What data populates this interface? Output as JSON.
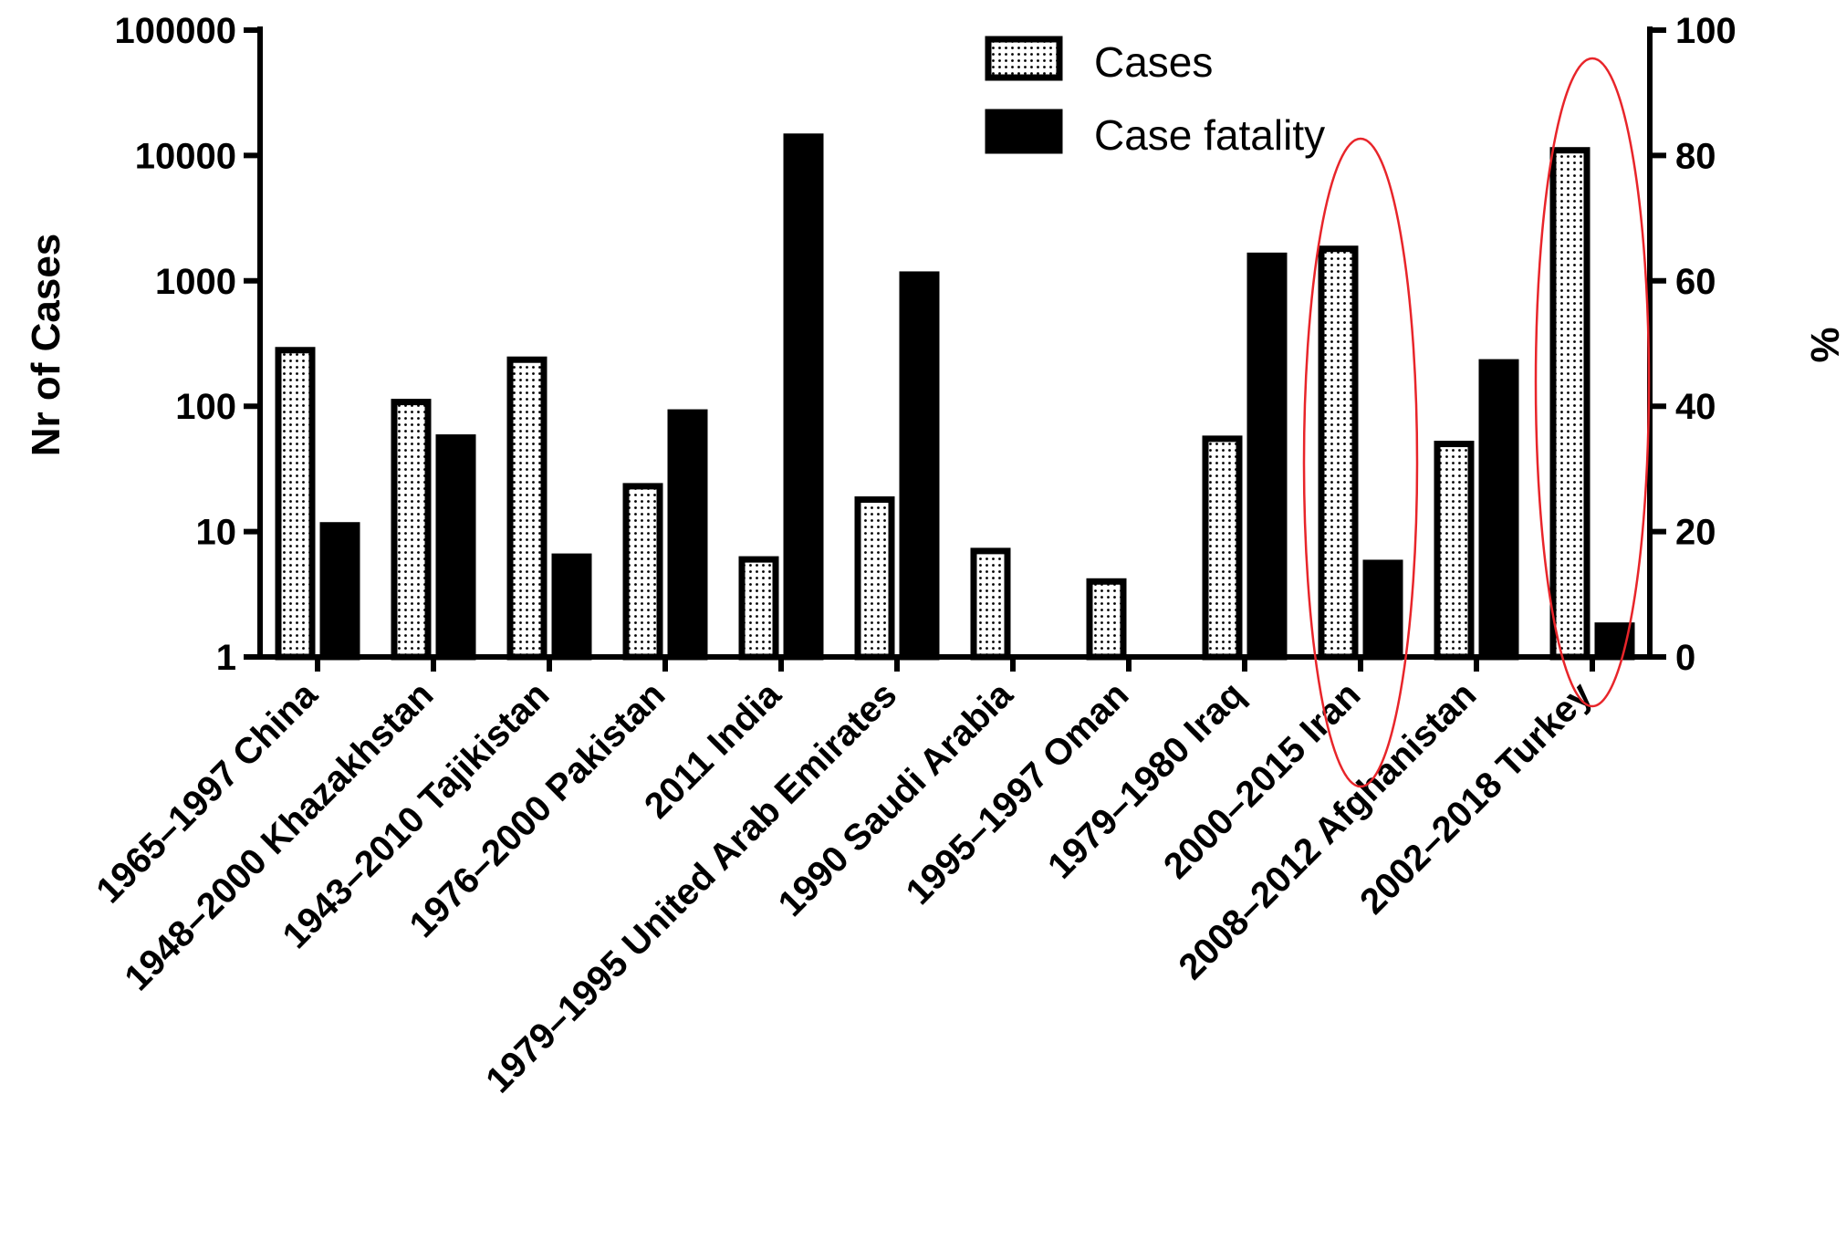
{
  "chart_data": {
    "type": "bar",
    "title": "",
    "categories": [
      "1965–1997 China",
      "1948–2000 Khazakhstan",
      "1943–2010 Tajikistan",
      "1976–2000 Pakistan",
      "2011 India",
      "1979–1995 United Arab Emirates",
      "1990 Saudi Arabia",
      "1995–1997 Oman",
      "1979–1980 Iraq",
      "2000–2015 Iran",
      "2008–2012 Afghanistan",
      "2002–2018 Turkey"
    ],
    "series": [
      {
        "name": "Cases",
        "axis": "left",
        "fill": "dotted",
        "values": [
          280,
          108,
          235,
          23,
          6,
          18,
          7,
          4,
          55,
          1800,
          50,
          11000
        ]
      },
      {
        "name": "Case fatality",
        "axis": "right",
        "fill": "solid",
        "values": [
          21,
          35,
          16,
          39,
          83,
          61,
          0,
          0,
          64,
          15,
          47,
          5
        ]
      }
    ],
    "ylabel": "Nr of Cases",
    "ylabel_right": "%",
    "yscale": "log",
    "ylim": [
      1,
      100000
    ],
    "yticks": [
      "1",
      "10",
      "100",
      "1000",
      "10000",
      "100000"
    ],
    "ylim_right": [
      0,
      100
    ],
    "yticks_right": [
      "0",
      "20",
      "40",
      "60",
      "80",
      "100"
    ],
    "legend_position": "top-center",
    "grid": false,
    "highlighted_categories": [
      "2000–2015 Iran",
      "2002–2018 Turkey"
    ],
    "highlight_color": "#e8252a"
  }
}
